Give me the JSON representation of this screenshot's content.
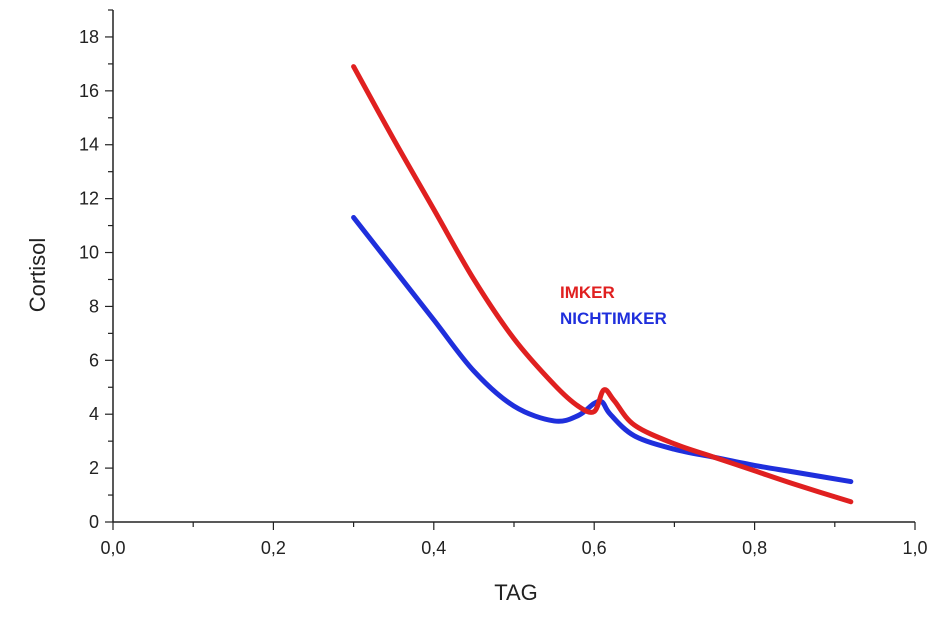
{
  "chart_data": {
    "type": "line",
    "xlabel": "TAG",
    "ylabel": "Cortisol",
    "xlim": [
      0.0,
      1.0
    ],
    "ylim": [
      0,
      19
    ],
    "x_ticks": [
      "0,0",
      "0,2",
      "0,4",
      "0,6",
      "0,8",
      "1,0"
    ],
    "y_ticks": [
      "0",
      "2",
      "4",
      "6",
      "8",
      "10",
      "12",
      "14",
      "16",
      "18"
    ],
    "grid": false,
    "legend_placement": "center-right",
    "series": [
      {
        "name": "IMKER",
        "color": "#e02020",
        "x": [
          0.3,
          0.35,
          0.4,
          0.45,
          0.5,
          0.55,
          0.58,
          0.6,
          0.612,
          0.625,
          0.65,
          0.7,
          0.75,
          0.8,
          0.85,
          0.92
        ],
        "y": [
          16.9,
          14.2,
          11.6,
          9.0,
          6.8,
          5.1,
          4.3,
          4.1,
          4.9,
          4.5,
          3.6,
          2.9,
          2.4,
          1.9,
          1.4,
          0.75
        ]
      },
      {
        "name": "NICHTIMKER",
        "color": "#1f2fdc",
        "x": [
          0.3,
          0.35,
          0.4,
          0.45,
          0.5,
          0.55,
          0.58,
          0.6,
          0.61,
          0.62,
          0.65,
          0.7,
          0.75,
          0.8,
          0.85,
          0.92
        ],
        "y": [
          11.3,
          9.4,
          7.5,
          5.6,
          4.3,
          3.75,
          3.95,
          4.4,
          4.45,
          4.0,
          3.2,
          2.7,
          2.4,
          2.1,
          1.85,
          1.5
        ]
      }
    ]
  }
}
